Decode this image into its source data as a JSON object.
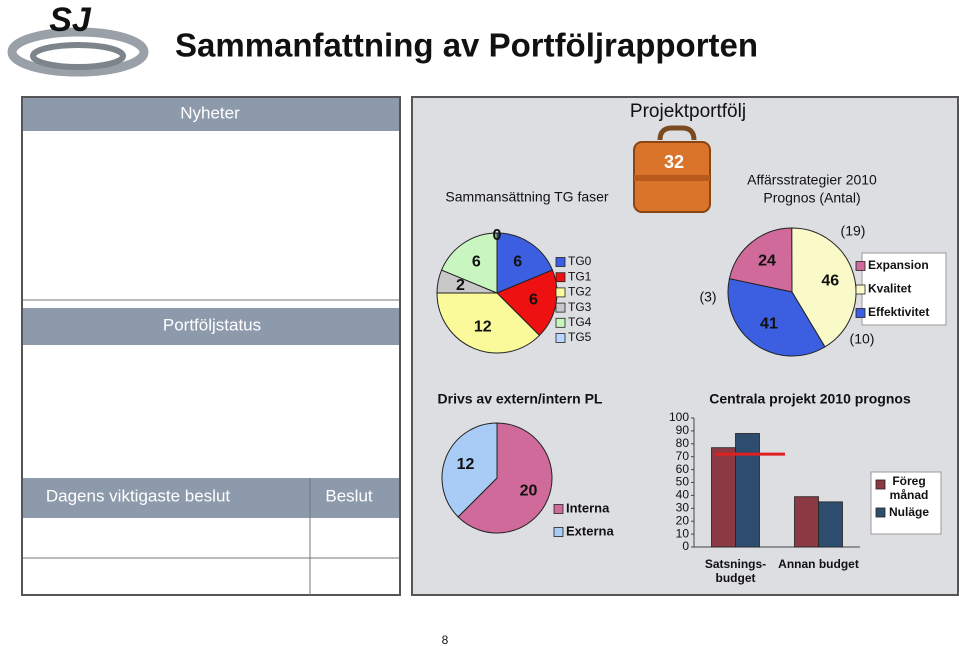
{
  "title": "Sammanfattning av Portföljrapporten",
  "logo_text": "SJ",
  "left_panel": {
    "news": "Nyheter",
    "status": "Portföljstatus",
    "decision": "Dagens viktigaste beslut",
    "decision_column": "Beslut"
  },
  "portfolio": {
    "title": "Projektportfölj",
    "total": 32
  },
  "page_number": 8,
  "chart_data": [
    {
      "type": "pie",
      "title": "Sammansättning TG faser",
      "categories": [
        "TG0",
        "TG1",
        "TG2",
        "TG3",
        "TG4",
        "TG5"
      ],
      "values": [
        6,
        6,
        12,
        2,
        6,
        0
      ],
      "colors": [
        "#3b5fe0",
        "#ee1111",
        "#fafa9a",
        "#c8c8c8",
        "#c8f5c0",
        "#b8d8ff"
      ]
    },
    {
      "type": "pie",
      "title": "Affärsstrategier 2010",
      "subtitle": "Prognos (Antal)",
      "categories": [
        "Expansion",
        "Kvalitet",
        "Effektivitet"
      ],
      "values": [
        24,
        46,
        41
      ],
      "colors": [
        "#d06a9a",
        "#fafac8",
        "#3b5fe0"
      ],
      "changes": [
        3,
        19,
        10
      ],
      "change_labels": [
        "(3)",
        "(19)",
        "(10)"
      ]
    },
    {
      "type": "pie",
      "title": "Drivs av extern/intern PL",
      "categories": [
        "Interna",
        "Externa"
      ],
      "values": [
        20,
        12
      ],
      "colors": [
        "#d06a9a",
        "#a8ccf5"
      ]
    },
    {
      "type": "bar",
      "title": "Centrala projekt 2010 prognos",
      "categories": [
        "Satsnings-budget",
        "Annan budget"
      ],
      "series": [
        {
          "name": "Föreg månad",
          "color": "#8b3a44",
          "values": [
            77,
            39
          ]
        },
        {
          "name": "Nuläge",
          "color": "#2e4d6e",
          "values": [
            88,
            35
          ]
        }
      ],
      "reference_line": {
        "value": 72,
        "color": "#e02020"
      },
      "ylim": [
        0,
        100
      ],
      "yticks": [
        0,
        10,
        20,
        30,
        40,
        50,
        60,
        70,
        80,
        90,
        100
      ]
    }
  ]
}
